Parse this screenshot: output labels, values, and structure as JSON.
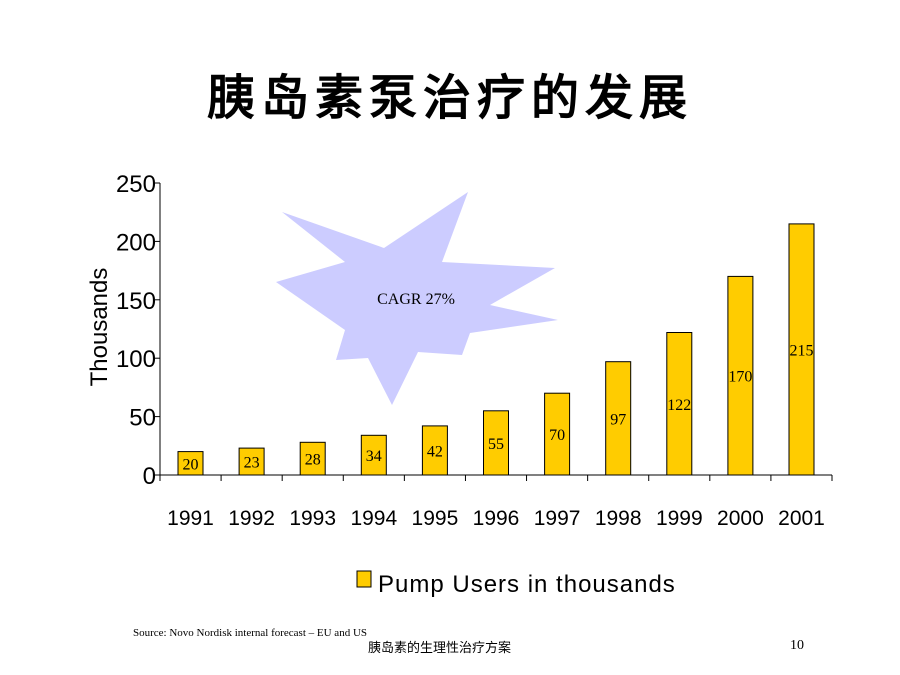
{
  "slide": {
    "title": "胰岛素泵治疗的发展",
    "source": "Source: Novo Nordisk internal forecast – EU and US",
    "footer": "胰岛素的生理性治疗方案",
    "page_number": "10"
  },
  "colors": {
    "bar_fill": "#FFCC00",
    "bar_stroke": "#000000",
    "starburst_fill": "#CCCCFF",
    "axis": "#000000"
  },
  "chart_data": {
    "type": "bar",
    "categories": [
      "1991",
      "1992",
      "1993",
      "1994",
      "1995",
      "1996",
      "1997",
      "1998",
      "1999",
      "2000",
      "2001"
    ],
    "series": [
      {
        "name": "Pump Users in thousands",
        "values": [
          20,
          23,
          28,
          34,
          42,
          55,
          70,
          97,
          122,
          170,
          215
        ]
      }
    ],
    "data_labels": [
      "20",
      "23",
      "28",
      "34",
      "42",
      "55",
      "70",
      "97",
      "122",
      "170",
      "215"
    ],
    "ylabel": "Thousands",
    "ylim": [
      0,
      250
    ],
    "yticks": [
      0,
      50,
      100,
      150,
      200,
      250
    ],
    "grid": false,
    "legend": "bottom",
    "annotation": "CAGR 27%"
  }
}
